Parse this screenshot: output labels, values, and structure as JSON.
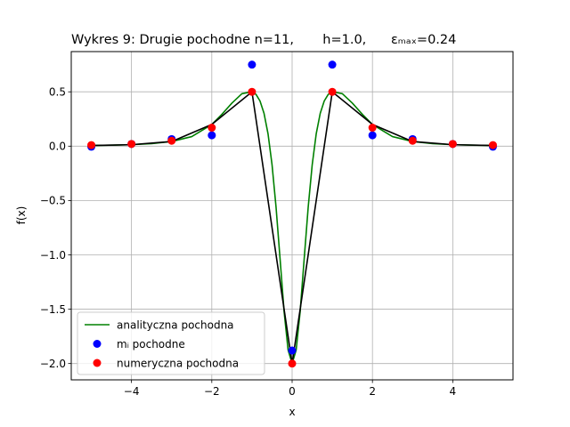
{
  "chart_data": {
    "type": "line",
    "title": "Wykres 9: Drugie pochodne n=11,       h=1.0,      εₘₐₓ=0.24",
    "xlabel": "x",
    "ylabel": "f(x)",
    "xlim": [
      -5.5,
      5.5
    ],
    "ylim": [
      -2.15,
      0.87
    ],
    "xticks": [
      -4,
      -2,
      0,
      2,
      4
    ],
    "xtick_labels": [
      "−4",
      "−2",
      "0",
      "2",
      "4"
    ],
    "yticks": [
      0.5,
      0.0,
      -0.5,
      -1.0,
      -1.5,
      -2.0
    ],
    "ytick_labels": [
      "0.5",
      "0.0",
      "−0.5",
      "−1.0",
      "−1.5",
      "−2.0"
    ],
    "grid": true,
    "legend_position": "lower-left",
    "series": [
      {
        "name": "analityczna pochodna",
        "kind": "line",
        "color": "#008000",
        "x": [
          -5,
          -4.5,
          -4,
          -3.5,
          -3,
          -2.5,
          -2,
          -1.75,
          -1.5,
          -1.25,
          -1,
          -0.9,
          -0.8,
          -0.7,
          -0.6,
          -0.5,
          -0.4,
          -0.3,
          -0.2,
          -0.1,
          0,
          0.1,
          0.2,
          0.3,
          0.4,
          0.5,
          0.6,
          0.7,
          0.8,
          0.9,
          1,
          1.25,
          1.5,
          1.75,
          2,
          2.5,
          3,
          3.5,
          4,
          4.5,
          5
        ],
        "y": [
          0.0059,
          0.0088,
          0.0138,
          0.0232,
          0.0427,
          0.0879,
          0.1999,
          0.2927,
          0.3956,
          0.4828,
          0.5,
          0.4763,
          0.4158,
          0.3021,
          0.1136,
          -0.1709,
          -0.5617,
          -1.0379,
          -1.521,
          -1.8759,
          -2.0,
          -1.8759,
          -1.521,
          -1.0379,
          -0.5617,
          -0.1709,
          0.1136,
          0.3021,
          0.4158,
          0.4763,
          0.5,
          0.4828,
          0.3956,
          0.2927,
          0.1999,
          0.0879,
          0.0427,
          0.0232,
          0.0138,
          0.0088,
          0.0059
        ]
      },
      {
        "name": "",
        "kind": "line",
        "color": "#000000",
        "x": [
          -5,
          -4,
          -3,
          -2,
          -1,
          0,
          1,
          2,
          3,
          4,
          5
        ],
        "y": [
          0.0059,
          0.0138,
          0.0427,
          0.1999,
          0.5,
          -2.0,
          0.5,
          0.1999,
          0.0427,
          0.0138,
          0.0059
        ]
      },
      {
        "name": "mᵢ pochodne",
        "kind": "scatter",
        "color": "#0000ff",
        "x": [
          -5,
          -4,
          -3,
          -2,
          -1,
          0,
          1,
          2,
          3,
          4,
          5
        ],
        "y": [
          -0.005,
          0.02,
          0.065,
          0.1,
          0.75,
          -1.88,
          0.75,
          0.1,
          0.065,
          0.02,
          -0.005
        ]
      },
      {
        "name": "numeryczna pochodna",
        "kind": "scatter",
        "color": "#ff0000",
        "x": [
          -5,
          -4,
          -3,
          -2,
          -1,
          0,
          1,
          2,
          3,
          4,
          5
        ],
        "y": [
          0.01,
          0.02,
          0.05,
          0.17,
          0.5,
          -2.0,
          0.5,
          0.17,
          0.05,
          0.02,
          0.01
        ]
      }
    ]
  }
}
